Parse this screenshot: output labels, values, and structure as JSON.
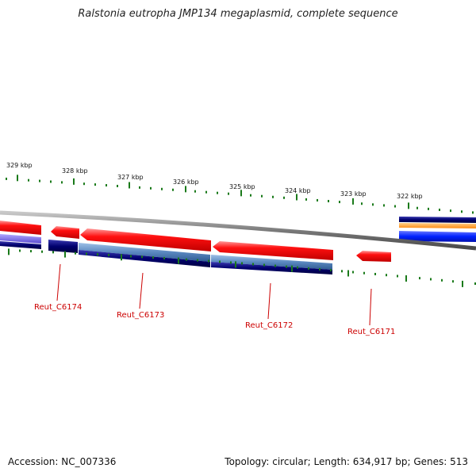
{
  "title": "Ralstonia eutropha JMP134 megaplasmid, complete sequence",
  "accession": "Accession: NC_007336",
  "summary": "Topology: circular; Length: 634,917 bp; Genes: 513",
  "scale_labels": [
    "329 kbp",
    "328 kbp",
    "327 kbp",
    "326 kbp",
    "325 kbp",
    "324 kbp",
    "323 kbp",
    "322 kbp"
  ],
  "genes": [
    {
      "name": "Reut_C6174",
      "strand": "reverse"
    },
    {
      "name": "Reut_C6173",
      "strand": "reverse"
    },
    {
      "name": "Reut_C6172",
      "strand": "reverse"
    },
    {
      "name": "Reut_C6171",
      "strand": "reverse"
    }
  ],
  "colors": {
    "cds_forward": "#e60000",
    "cds_reverse": "#e60000",
    "backbone": "#808080",
    "tick": "#1a7a1a",
    "navy_feature": "#000a6e",
    "steelblue_feature": "#4a7ab8",
    "blue_feature": "#0022ff",
    "orange_feature": "#ff9922",
    "label": "#cc0000"
  }
}
